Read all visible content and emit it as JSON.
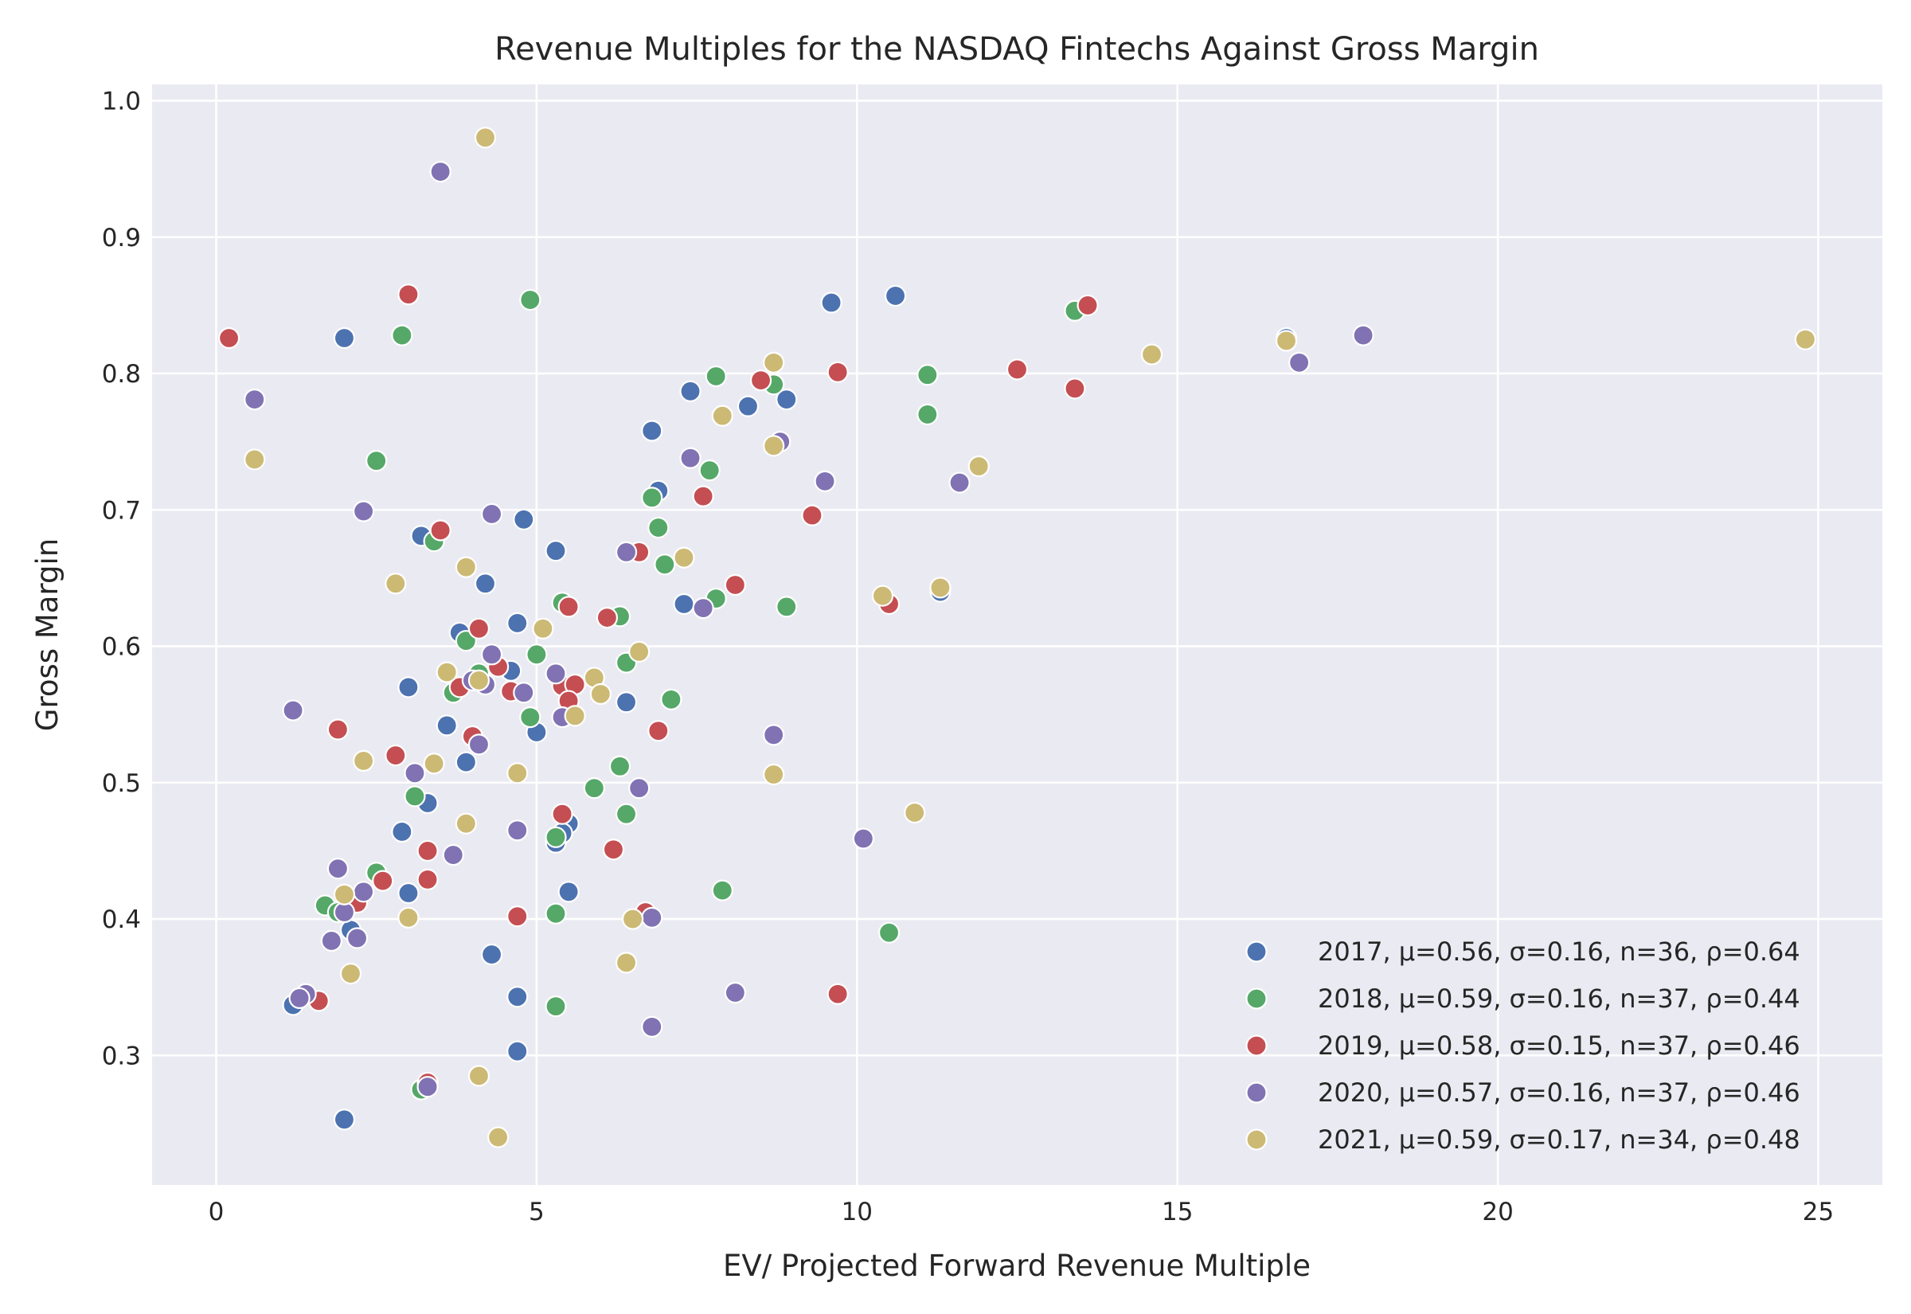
{
  "chart_data": {
    "type": "scatter",
    "title": "Revenue Multiples for the NASDAQ Fintechs Against Gross Margin",
    "xlabel": "EV/ Projected Forward Revenue Multiple",
    "ylabel": "Gross Margin",
    "xlim": [
      -1.0,
      26.0
    ],
    "ylim": [
      0.205,
      1.012
    ],
    "x_ticks": [
      "0",
      "5",
      "10",
      "15",
      "20",
      "25"
    ],
    "y_ticks": [
      "0.3",
      "0.4",
      "0.5",
      "0.6",
      "0.7",
      "0.8",
      "0.9",
      "1.0"
    ],
    "grid": true,
    "legend_position": "bottom-right",
    "series": [
      {
        "name": "2017, μ=0.56, σ=0.16, n=36, ρ=0.64",
        "color": "#4c72b0",
        "points": [
          [
            2.0,
            0.826
          ],
          [
            3.2,
            0.681
          ],
          [
            3.6,
            0.542
          ],
          [
            3.8,
            0.61
          ],
          [
            3.9,
            0.515
          ],
          [
            4.2,
            0.646
          ],
          [
            4.3,
            0.374
          ],
          [
            4.6,
            0.582
          ],
          [
            4.7,
            0.343
          ],
          [
            4.7,
            0.617
          ],
          [
            4.8,
            0.693
          ],
          [
            5.0,
            0.537
          ],
          [
            5.3,
            0.67
          ],
          [
            5.3,
            0.456
          ],
          [
            5.5,
            0.42
          ],
          [
            5.5,
            0.47
          ],
          [
            6.4,
            0.559
          ],
          [
            6.8,
            0.758
          ],
          [
            6.9,
            0.714
          ],
          [
            7.3,
            0.631
          ],
          [
            7.4,
            0.787
          ],
          [
            8.3,
            0.776
          ],
          [
            8.9,
            0.781
          ],
          [
            9.6,
            0.852
          ],
          [
            10.6,
            0.857
          ],
          [
            11.3,
            0.64
          ],
          [
            16.7,
            0.826
          ],
          [
            1.2,
            0.337
          ],
          [
            2.0,
            0.253
          ],
          [
            2.1,
            0.392
          ],
          [
            2.9,
            0.464
          ],
          [
            3.0,
            0.419
          ],
          [
            3.3,
            0.485
          ],
          [
            3.0,
            0.57
          ],
          [
            4.7,
            0.303
          ],
          [
            5.4,
            0.463
          ]
        ]
      },
      {
        "name": "2018, μ=0.59, σ=0.16, n=37, ρ=0.44",
        "color": "#55a868",
        "points": [
          [
            2.5,
            0.736
          ],
          [
            2.9,
            0.828
          ],
          [
            3.1,
            0.49
          ],
          [
            3.4,
            0.677
          ],
          [
            3.7,
            0.566
          ],
          [
            3.9,
            0.604
          ],
          [
            4.9,
            0.854
          ],
          [
            4.9,
            0.548
          ],
          [
            5.0,
            0.594
          ],
          [
            5.3,
            0.404
          ],
          [
            5.3,
            0.336
          ],
          [
            5.4,
            0.632
          ],
          [
            5.9,
            0.496
          ],
          [
            6.3,
            0.512
          ],
          [
            6.3,
            0.622
          ],
          [
            6.4,
            0.588
          ],
          [
            6.4,
            0.477
          ],
          [
            6.8,
            0.709
          ],
          [
            6.9,
            0.687
          ],
          [
            7.0,
            0.66
          ],
          [
            7.1,
            0.561
          ],
          [
            7.7,
            0.729
          ],
          [
            7.8,
            0.798
          ],
          [
            7.8,
            0.635
          ],
          [
            7.9,
            0.421
          ],
          [
            8.7,
            0.792
          ],
          [
            8.9,
            0.629
          ],
          [
            10.5,
            0.39
          ],
          [
            11.1,
            0.799
          ],
          [
            11.1,
            0.77
          ],
          [
            13.4,
            0.846
          ],
          [
            1.7,
            0.41
          ],
          [
            1.9,
            0.405
          ],
          [
            2.5,
            0.434
          ],
          [
            3.2,
            0.275
          ],
          [
            4.1,
            0.58
          ],
          [
            5.3,
            0.46
          ]
        ]
      },
      {
        "name": "2019, μ=0.58, σ=0.15, n=37, ρ=0.46",
        "color": "#c44e52",
        "points": [
          [
            0.2,
            0.826
          ],
          [
            1.6,
            0.34
          ],
          [
            1.9,
            0.539
          ],
          [
            2.2,
            0.412
          ],
          [
            2.6,
            0.428
          ],
          [
            2.8,
            0.52
          ],
          [
            3.0,
            0.858
          ],
          [
            3.3,
            0.429
          ],
          [
            3.3,
            0.45
          ],
          [
            3.5,
            0.685
          ],
          [
            3.8,
            0.57
          ],
          [
            4.0,
            0.534
          ],
          [
            4.1,
            0.613
          ],
          [
            4.4,
            0.585
          ],
          [
            4.6,
            0.567
          ],
          [
            4.7,
            0.402
          ],
          [
            5.4,
            0.477
          ],
          [
            5.4,
            0.571
          ],
          [
            5.5,
            0.629
          ],
          [
            5.6,
            0.572
          ],
          [
            6.1,
            0.621
          ],
          [
            6.2,
            0.451
          ],
          [
            6.6,
            0.669
          ],
          [
            6.7,
            0.405
          ],
          [
            6.9,
            0.538
          ],
          [
            7.6,
            0.71
          ],
          [
            8.1,
            0.645
          ],
          [
            8.5,
            0.795
          ],
          [
            9.3,
            0.696
          ],
          [
            9.7,
            0.801
          ],
          [
            9.7,
            0.345
          ],
          [
            10.5,
            0.631
          ],
          [
            12.5,
            0.803
          ],
          [
            13.4,
            0.789
          ],
          [
            13.6,
            0.85
          ],
          [
            3.3,
            0.28
          ],
          [
            5.5,
            0.56
          ]
        ]
      },
      {
        "name": "2020, μ=0.57, σ=0.16, n=37, ρ=0.46",
        "color": "#8172b3",
        "points": [
          [
            0.6,
            0.781
          ],
          [
            1.2,
            0.553
          ],
          [
            1.4,
            0.345
          ],
          [
            1.8,
            0.384
          ],
          [
            1.9,
            0.437
          ],
          [
            2.2,
            0.386
          ],
          [
            2.3,
            0.42
          ],
          [
            2.3,
            0.699
          ],
          [
            3.1,
            0.507
          ],
          [
            3.3,
            0.277
          ],
          [
            3.5,
            0.948
          ],
          [
            3.7,
            0.447
          ],
          [
            4.0,
            0.575
          ],
          [
            4.1,
            0.528
          ],
          [
            4.3,
            0.594
          ],
          [
            4.3,
            0.697
          ],
          [
            4.7,
            0.465
          ],
          [
            4.8,
            0.566
          ],
          [
            5.3,
            0.58
          ],
          [
            5.4,
            0.548
          ],
          [
            6.4,
            0.669
          ],
          [
            6.6,
            0.496
          ],
          [
            6.8,
            0.401
          ],
          [
            6.8,
            0.321
          ],
          [
            7.4,
            0.738
          ],
          [
            7.6,
            0.628
          ],
          [
            8.1,
            0.346
          ],
          [
            8.7,
            0.535
          ],
          [
            8.8,
            0.75
          ],
          [
            9.5,
            0.721
          ],
          [
            10.1,
            0.459
          ],
          [
            11.6,
            0.72
          ],
          [
            16.9,
            0.808
          ],
          [
            17.9,
            0.828
          ],
          [
            4.2,
            0.572
          ],
          [
            1.3,
            0.342
          ],
          [
            2.0,
            0.405
          ]
        ]
      },
      {
        "name": "2021, μ=0.59, σ=0.17, n=34, ρ=0.48",
        "color": "#ccb974",
        "points": [
          [
            0.6,
            0.737
          ],
          [
            2.0,
            0.418
          ],
          [
            2.1,
            0.36
          ],
          [
            2.3,
            0.516
          ],
          [
            2.8,
            0.646
          ],
          [
            3.0,
            0.401
          ],
          [
            3.4,
            0.514
          ],
          [
            3.6,
            0.581
          ],
          [
            3.9,
            0.47
          ],
          [
            3.9,
            0.658
          ],
          [
            4.1,
            0.575
          ],
          [
            4.1,
            0.285
          ],
          [
            4.2,
            0.973
          ],
          [
            4.4,
            0.24
          ],
          [
            4.7,
            0.507
          ],
          [
            5.1,
            0.613
          ],
          [
            5.6,
            0.549
          ],
          [
            5.9,
            0.577
          ],
          [
            6.0,
            0.565
          ],
          [
            6.4,
            0.368
          ],
          [
            6.5,
            0.4
          ],
          [
            6.6,
            0.596
          ],
          [
            7.3,
            0.665
          ],
          [
            7.9,
            0.769
          ],
          [
            8.7,
            0.808
          ],
          [
            8.7,
            0.747
          ],
          [
            8.7,
            0.506
          ],
          [
            10.4,
            0.637
          ],
          [
            10.9,
            0.478
          ],
          [
            11.3,
            0.643
          ],
          [
            11.9,
            0.732
          ],
          [
            14.6,
            0.814
          ],
          [
            16.7,
            0.824
          ],
          [
            24.8,
            0.825
          ]
        ]
      }
    ]
  }
}
